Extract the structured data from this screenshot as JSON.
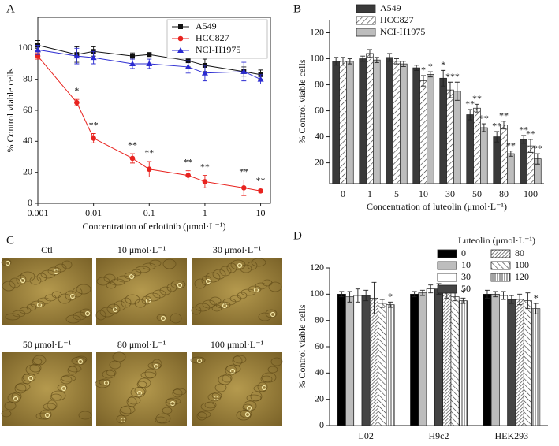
{
  "chart_data": [
    {
      "panel": "A",
      "type": "line",
      "xscale": "log",
      "frame": true,
      "legend": "upper right",
      "xlabel": "Concentration of erlotinib (μmol·L⁻¹)",
      "ylabel": "% Control viable cells",
      "x": [
        0.001,
        0.005,
        0.01,
        0.05,
        0.1,
        0.5,
        1,
        5,
        10
      ],
      "xlim": [
        0.001,
        15
      ],
      "xticks": [
        0.001,
        0.01,
        0.1,
        1,
        10
      ],
      "ylim": [
        0,
        120
      ],
      "yticks": [
        0,
        20,
        40,
        60,
        80,
        100
      ],
      "series": [
        {
          "name": "A549",
          "color": "#111111",
          "marker": "square",
          "values": [
            102,
            96,
            98,
            95,
            96,
            92,
            89,
            85,
            83
          ],
          "errors": [
            3,
            5,
            3,
            2,
            1,
            4,
            4,
            3,
            3
          ]
        },
        {
          "name": "HCC827",
          "color": "#e8231f",
          "marker": "circle",
          "values": [
            95,
            65,
            42,
            29,
            22,
            18,
            14,
            10,
            8
          ],
          "errors": [
            2,
            2,
            3,
            3,
            5,
            3,
            4,
            5,
            1
          ],
          "significance": [
            null,
            "*",
            "**",
            "**",
            "**",
            "**",
            "**",
            "**",
            "**"
          ]
        },
        {
          "name": "NCI-H1975",
          "color": "#2b2bd1",
          "marker": "triangle",
          "values": [
            99,
            95,
            94,
            90,
            90,
            88,
            84,
            85,
            80
          ],
          "errors": [
            3,
            5,
            4,
            3,
            3,
            4,
            5,
            6,
            3
          ]
        }
      ]
    },
    {
      "panel": "B",
      "type": "bar",
      "legend": "upper left",
      "xlabel": "Concentration of luteolin (μmol·L⁻¹)",
      "ylabel": "% Control viable cells",
      "categories": [
        "0",
        "1",
        "5",
        "10",
        "30",
        "50",
        "80",
        "100"
      ],
      "ylim": [
        4,
        130
      ],
      "yticks": [
        20,
        40,
        60,
        80,
        100,
        120
      ],
      "series": [
        {
          "name": "A549",
          "color": "#3a3a3a",
          "values": [
            98,
            100,
            101,
            93,
            85,
            57,
            40,
            38
          ],
          "errors": [
            3,
            2,
            3,
            2,
            6,
            4,
            4,
            3
          ],
          "significance": [
            null,
            null,
            null,
            null,
            "*",
            "**",
            "**",
            "**"
          ]
        },
        {
          "name": "HCC827",
          "color": "#ffffff",
          "pattern": "hatch-r",
          "values": [
            98,
            104,
            98,
            83,
            76,
            62,
            49,
            33
          ],
          "errors": [
            3,
            3,
            2,
            4,
            6,
            3,
            3,
            5
          ],
          "significance": [
            null,
            null,
            null,
            "*",
            "**",
            "**",
            "**",
            "**"
          ]
        },
        {
          "name": "NCI-H1975",
          "color": "#bdbdbd",
          "values": [
            98,
            99,
            96,
            88,
            75,
            47,
            27,
            23
          ],
          "errors": [
            2,
            2,
            2,
            2,
            7,
            3,
            2,
            4
          ],
          "significance": [
            null,
            null,
            null,
            "*",
            "*",
            "**",
            "**",
            "**"
          ]
        }
      ]
    },
    {
      "panel": "D",
      "type": "bar",
      "legend": "top",
      "legend_title": "Luteolin (μmol·L⁻¹)",
      "ylabel": "% Control viable cells",
      "categories": [
        "L02",
        "H9c2",
        "HEK293"
      ],
      "ylim": [
        0,
        120
      ],
      "yticks": [
        0,
        20,
        40,
        60,
        80,
        100,
        120
      ],
      "series": [
        {
          "name": "0",
          "color": "#000000",
          "values": [
            100,
            100,
            100
          ],
          "errors": [
            2,
            2,
            3
          ]
        },
        {
          "name": "10",
          "color": "#bdbdbd",
          "values": [
            98,
            101,
            100
          ],
          "errors": [
            4,
            2,
            2
          ]
        },
        {
          "name": "30",
          "color": "#ffffff",
          "values": [
            99,
            104,
            99
          ],
          "errors": [
            5,
            3,
            3
          ]
        },
        {
          "name": "50",
          "color": "#444444",
          "values": [
            99,
            104,
            96
          ],
          "errors": [
            4,
            4,
            3
          ]
        },
        {
          "name": "80",
          "color": "#ffffff",
          "pattern": "hatch-dense",
          "values": [
            97,
            101,
            96
          ],
          "errors": [
            12,
            4,
            4
          ]
        },
        {
          "name": "100",
          "color": "#ffffff",
          "pattern": "hatch-l",
          "values": [
            93,
            98,
            95
          ],
          "errors": [
            3,
            3,
            6
          ]
        },
        {
          "name": "120",
          "color": "#ffffff",
          "pattern": "vert",
          "values": [
            92,
            95,
            89
          ],
          "errors": [
            2,
            2,
            4
          ],
          "significance": [
            "*",
            "*",
            "*"
          ]
        }
      ]
    }
  ],
  "image_panel": {
    "panel": "C",
    "labels": [
      "Ctl",
      "10 μmol·L⁻¹",
      "30 μmol·L⁻¹",
      "50 μmol·L⁻¹",
      "80 μmol·L⁻¹",
      "100 μmol·L⁻¹"
    ]
  }
}
